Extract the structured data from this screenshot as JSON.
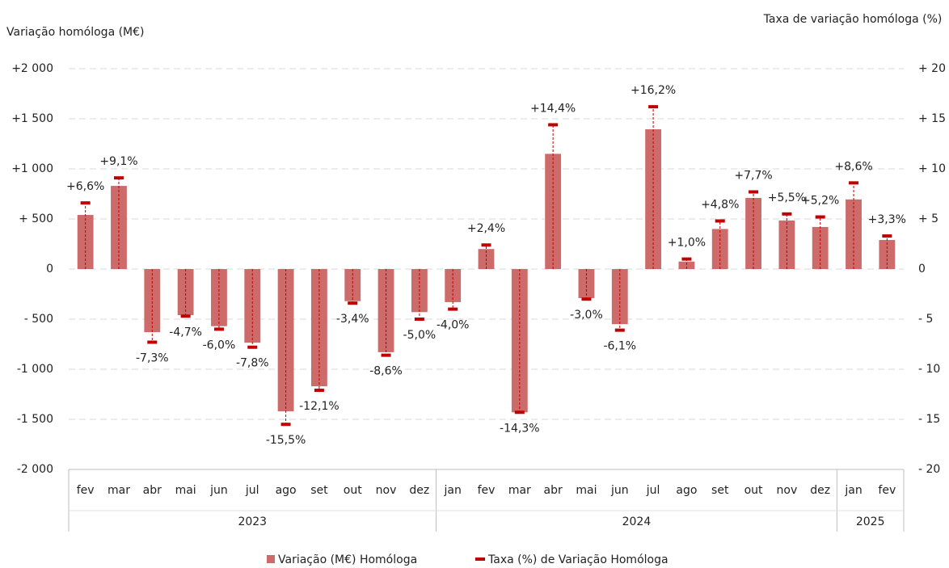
{
  "chart_data": {
    "type": "bar_line",
    "y_label": "Variação homóloga (M€)",
    "y2_label": "Taxa de variação homóloga (%)",
    "groups": [
      {
        "label": "2023",
        "categories": [
          "fev",
          "mar",
          "abr",
          "mai",
          "jun",
          "jul",
          "ago",
          "set",
          "out",
          "nov",
          "dez"
        ]
      },
      {
        "label": "2024",
        "categories": [
          "jan",
          "fev",
          "mar",
          "abr",
          "mai",
          "jun",
          "jul",
          "ago",
          "set",
          "out",
          "nov",
          "dez"
        ]
      },
      {
        "label": "2025",
        "categories": [
          "jan",
          "fev"
        ]
      }
    ],
    "series": [
      {
        "name": "Variação (M€) Homóloga",
        "type": "bar",
        "color": "#cd6b6b",
        "values": [
          540,
          830,
          -630,
          -460,
          -570,
          -735,
          -1420,
          -1170,
          -320,
          -830,
          -430,
          -330,
          200,
          -1430,
          1150,
          -290,
          -550,
          1395,
          75,
          400,
          710,
          485,
          420,
          695,
          290
        ]
      },
      {
        "name": "Taxa (%) de Variação Homóloga",
        "type": "marker",
        "axis": "y2",
        "color": "#c00000",
        "values": [
          6.6,
          9.1,
          -7.3,
          -4.7,
          -6.0,
          -7.8,
          -15.5,
          -12.1,
          -3.4,
          -8.6,
          -5.0,
          -4.0,
          2.4,
          -14.3,
          14.4,
          -3.0,
          -6.1,
          16.2,
          1.0,
          4.8,
          7.7,
          5.5,
          5.2,
          8.6,
          3.3
        ],
        "value_labels": [
          "+6,6%",
          "+9,1%",
          "-7,3%",
          "-4,7%",
          "-6,0%",
          "-7,8%",
          "-15,5%",
          "-12,1%",
          "-3,4%",
          "-8,6%",
          "-5,0%",
          "-4,0%",
          "+2,4%",
          "-14,3%",
          "+14,4%",
          "-3,0%",
          "-6,1%",
          "+16,2%",
          "+1,0%",
          "+4,8%",
          "+7,7%",
          "+5,5%",
          "+5,2%",
          "+8,6%",
          "+3,3%"
        ]
      }
    ],
    "ylim": [
      -2000,
      2000
    ],
    "yticks": [
      {
        "value": 2000,
        "label": "+2 000"
      },
      {
        "value": 1500,
        "label": "+1 500"
      },
      {
        "value": 1000,
        "label": "+1 000"
      },
      {
        "value": 500,
        "label": "+ 500"
      },
      0,
      {
        "value": -500,
        "label": "- 500"
      },
      {
        "value": -1000,
        "label": "-1 000"
      },
      {
        "value": -1500,
        "label": "-1 500"
      },
      {
        "value": -2000,
        "label": "-2 000"
      }
    ],
    "y2lim": [
      -20,
      20
    ],
    "y2ticks": [
      {
        "value": 20,
        "label": "+ 20"
      },
      {
        "value": 15,
        "label": "+ 15"
      },
      {
        "value": 10,
        "label": "+ 10"
      },
      {
        "value": 5,
        "label": "+ 5"
      },
      0,
      {
        "value": -5,
        "label": "- 5"
      },
      {
        "value": -10,
        "label": "- 10"
      },
      {
        "value": -15,
        "label": "- 15"
      },
      {
        "value": -20,
        "label": "- 20"
      }
    ],
    "grid": true,
    "legend": "bottom"
  }
}
